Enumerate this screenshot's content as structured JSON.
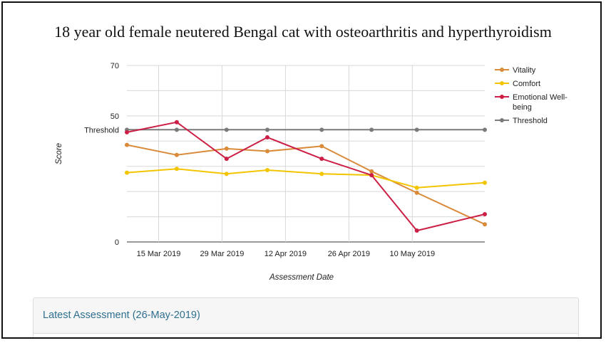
{
  "chart_data": {
    "type": "line",
    "title": "18 year old female neutered Bengal cat with osteoarthritis and hyperthyroidism",
    "xlabel": "Assessment Date",
    "ylabel": "Score",
    "y_ticks": [
      "0",
      "50",
      "70"
    ],
    "threshold_label": "Threshold",
    "x_ticks": [
      "15 Mar 2019",
      "29 Mar 2019",
      "12 Apr 2019",
      "26 Apr 2019",
      "10 May 2019"
    ],
    "x_tick_dates": [
      "2019-03-15",
      "2019-03-29",
      "2019-04-12",
      "2019-04-26",
      "2019-05-10"
    ],
    "xlim": [
      "2019-03-08",
      "2019-05-26"
    ],
    "ylim": [
      0,
      70
    ],
    "grid": true,
    "legend": "right",
    "series": [
      {
        "name": "Vitality",
        "color": "#d98b3a",
        "points": [
          {
            "x": "2019-03-08",
            "y": 38.5
          },
          {
            "x": "2019-03-19",
            "y": 34.5
          },
          {
            "x": "2019-03-30",
            "y": 37.0
          },
          {
            "x": "2019-04-08",
            "y": 36.0
          },
          {
            "x": "2019-04-20",
            "y": 38.0
          },
          {
            "x": "2019-05-01",
            "y": 28.0
          },
          {
            "x": "2019-05-11",
            "y": 19.5
          },
          {
            "x": "2019-05-26",
            "y": 7.0
          }
        ]
      },
      {
        "name": "Comfort",
        "color": "#f2c500",
        "points": [
          {
            "x": "2019-03-08",
            "y": 27.5
          },
          {
            "x": "2019-03-19",
            "y": 29.0
          },
          {
            "x": "2019-03-30",
            "y": 27.0
          },
          {
            "x": "2019-04-08",
            "y": 28.5
          },
          {
            "x": "2019-04-20",
            "y": 27.0
          },
          {
            "x": "2019-05-01",
            "y": 26.5
          },
          {
            "x": "2019-05-11",
            "y": 21.5
          },
          {
            "x": "2019-05-26",
            "y": 23.5
          }
        ]
      },
      {
        "name": "Emotional Well-being",
        "color": "#cc1f45",
        "points": [
          {
            "x": "2019-03-08",
            "y": 43.5
          },
          {
            "x": "2019-03-19",
            "y": 47.5
          },
          {
            "x": "2019-03-30",
            "y": 33.0
          },
          {
            "x": "2019-04-08",
            "y": 41.5
          },
          {
            "x": "2019-04-20",
            "y": 33.0
          },
          {
            "x": "2019-05-01",
            "y": 26.5
          },
          {
            "x": "2019-05-11",
            "y": 4.5
          },
          {
            "x": "2019-05-26",
            "y": 11.0
          }
        ]
      },
      {
        "name": "Threshold",
        "color": "#7a7a7a",
        "points": [
          {
            "x": "2019-03-08",
            "y": 44.5
          },
          {
            "x": "2019-03-19",
            "y": 44.5
          },
          {
            "x": "2019-03-30",
            "y": 44.5
          },
          {
            "x": "2019-04-08",
            "y": 44.5
          },
          {
            "x": "2019-04-20",
            "y": 44.5
          },
          {
            "x": "2019-05-01",
            "y": 44.5
          },
          {
            "x": "2019-05-11",
            "y": 44.5
          },
          {
            "x": "2019-05-26",
            "y": 44.5
          }
        ]
      }
    ]
  },
  "panel": {
    "title": "Latest Assessment (26-May-2019)"
  }
}
